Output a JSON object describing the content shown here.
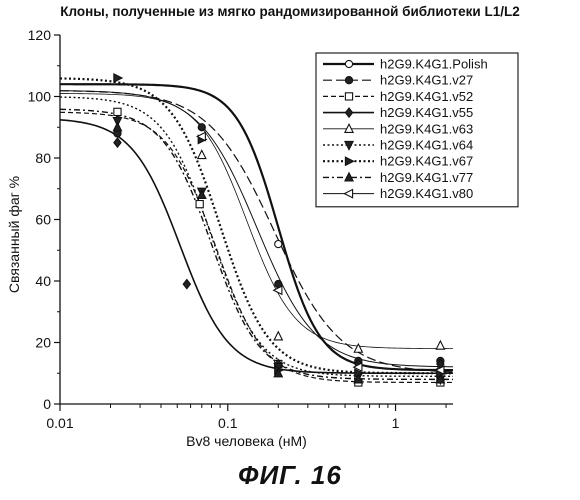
{
  "figure_label": "ФИГ. 16",
  "chart_data": {
    "type": "line",
    "title": "Клоны, полученные из мягко рандомизированной библиотеки L1/L2",
    "xlabel": "Bv8 человека (нМ)",
    "ylabel": "Связанный фаг %",
    "x_scale": "log",
    "xlim": [
      0.01,
      2.2
    ],
    "ylim": [
      0,
      120
    ],
    "x_ticks": [
      0.01,
      0.1,
      1
    ],
    "x_tick_labels": [
      "0.01",
      "0.1",
      "1"
    ],
    "y_ticks": [
      0,
      20,
      40,
      60,
      80,
      100,
      120
    ],
    "y_tick_labels": [
      "0",
      "20",
      "40",
      "60",
      "80",
      "100",
      "120"
    ],
    "grid": false,
    "legend_position": "top-right",
    "series": [
      {
        "name": "h2G9.K4G1.Polish",
        "marker": "circle-open",
        "dash": "solid",
        "line_width": 2.2,
        "fit": {
          "top": 104,
          "bottom": 11,
          "ec50": 0.2,
          "hill": 3.5
        },
        "points": [
          {
            "x": 0.2,
            "y": 52
          },
          {
            "x": 1.85,
            "y": 11
          }
        ]
      },
      {
        "name": "h2G9.K4G1.v27",
        "marker": "circle-filled",
        "dash": "longdash",
        "line_width": 1.2,
        "fit": {
          "top": 102,
          "bottom": 10,
          "ec50": 0.19,
          "hill": 2.2
        },
        "points": [
          {
            "x": 0.022,
            "y": 88
          },
          {
            "x": 0.07,
            "y": 90
          },
          {
            "x": 0.2,
            "y": 39
          },
          {
            "x": 0.6,
            "y": 14
          },
          {
            "x": 1.85,
            "y": 14
          }
        ]
      },
      {
        "name": "h2G9.K4G1.v52",
        "marker": "square-open",
        "dash": "dash",
        "line_width": 1.2,
        "fit": {
          "top": 95,
          "bottom": 7,
          "ec50": 0.085,
          "hill": 3.0
        },
        "points": [
          {
            "x": 0.022,
            "y": 95
          },
          {
            "x": 0.068,
            "y": 65
          },
          {
            "x": 0.2,
            "y": 13
          },
          {
            "x": 0.6,
            "y": 7
          },
          {
            "x": 1.85,
            "y": 7
          }
        ]
      },
      {
        "name": "h2G9.K4G1.v55",
        "marker": "diamond-filled",
        "dash": "solid",
        "line_width": 1.6,
        "fit": {
          "top": 93,
          "bottom": 10,
          "ec50": 0.052,
          "hill": 3.0
        },
        "points": [
          {
            "x": 0.022,
            "y": 85
          },
          {
            "x": 0.057,
            "y": 39
          },
          {
            "x": 0.2,
            "y": 13
          },
          {
            "x": 0.6,
            "y": 13
          },
          {
            "x": 1.85,
            "y": 13
          }
        ]
      },
      {
        "name": "h2G9.K4G1.v63",
        "marker": "triangle-up-open",
        "dash": "solid",
        "line_width": 0.8,
        "fit": {
          "top": 101,
          "bottom": 18,
          "ec50": 0.13,
          "hill": 3.0
        },
        "points": [
          {
            "x": 0.07,
            "y": 81
          },
          {
            "x": 0.2,
            "y": 22
          },
          {
            "x": 0.6,
            "y": 18
          },
          {
            "x": 1.85,
            "y": 19
          }
        ]
      },
      {
        "name": "h2G9.K4G1.v64",
        "marker": "triangle-down-filled",
        "dash": "dot",
        "line_width": 1.4,
        "fit": {
          "top": 100,
          "bottom": 9,
          "ec50": 0.08,
          "hill": 3.0
        },
        "points": [
          {
            "x": 0.022,
            "y": 92
          },
          {
            "x": 0.07,
            "y": 69
          },
          {
            "x": 0.2,
            "y": 12
          },
          {
            "x": 0.6,
            "y": 9
          },
          {
            "x": 1.85,
            "y": 8
          }
        ]
      },
      {
        "name": "h2G9.K4G1.v67",
        "marker": "triangle-right-filled",
        "dash": "dot",
        "line_width": 2.2,
        "fit": {
          "top": 106,
          "bottom": 10,
          "ec50": 0.09,
          "hill": 3.0
        },
        "points": [
          {
            "x": 0.022,
            "y": 106
          },
          {
            "x": 0.07,
            "y": 86
          },
          {
            "x": 0.2,
            "y": 11
          },
          {
            "x": 0.6,
            "y": 10
          },
          {
            "x": 1.85,
            "y": 10
          }
        ]
      },
      {
        "name": "h2G9.K4G1.v77",
        "marker": "triangle-up-filled",
        "dash": "dashdot",
        "line_width": 1.4,
        "fit": {
          "top": 96,
          "bottom": 8,
          "ec50": 0.08,
          "hill": 3.0
        },
        "points": [
          {
            "x": 0.022,
            "y": 90
          },
          {
            "x": 0.07,
            "y": 68
          },
          {
            "x": 0.2,
            "y": 10
          },
          {
            "x": 0.6,
            "y": 8
          },
          {
            "x": 1.85,
            "y": 8
          }
        ]
      },
      {
        "name": "h2G9.K4G1.v80",
        "marker": "triangle-left-open",
        "dash": "solid",
        "line_width": 1.0,
        "fit": {
          "top": 102,
          "bottom": 12,
          "ec50": 0.15,
          "hill": 2.5
        },
        "points": [
          {
            "x": 0.07,
            "y": 87
          },
          {
            "x": 0.2,
            "y": 37
          },
          {
            "x": 0.6,
            "y": 12
          },
          {
            "x": 1.85,
            "y": 11
          }
        ]
      }
    ]
  }
}
